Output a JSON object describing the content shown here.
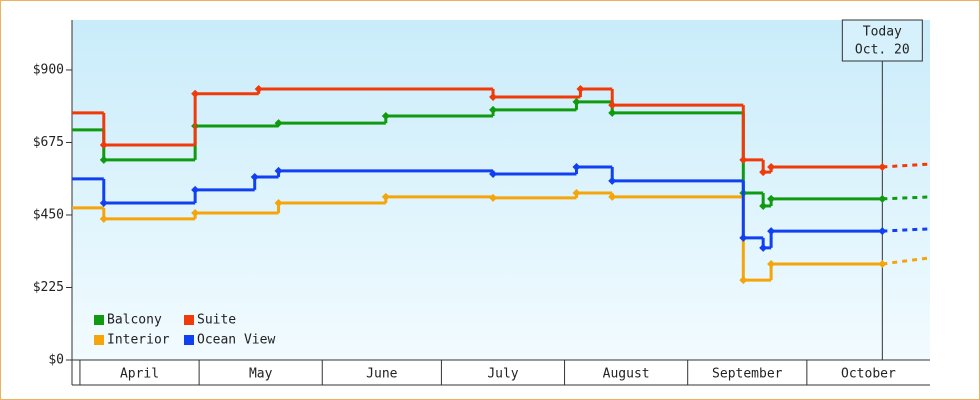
{
  "chart_data": {
    "type": "step",
    "xlim": [
      -2,
      214
    ],
    "ylim": [
      0,
      1055
    ],
    "yticks": [
      {
        "value": 0,
        "label": "$0"
      },
      {
        "value": 225,
        "label": "$225"
      },
      {
        "value": 450,
        "label": "$450"
      },
      {
        "value": 675,
        "label": "$675"
      },
      {
        "value": 900,
        "label": "$900"
      }
    ],
    "xticks": [
      {
        "value": 0,
        "label": "April"
      },
      {
        "value": 30,
        "label": "May"
      },
      {
        "value": 61,
        "label": "June"
      },
      {
        "value": 91,
        "label": "July"
      },
      {
        "value": 122,
        "label": "August"
      },
      {
        "value": 153,
        "label": "September"
      },
      {
        "value": 183,
        "label": "October"
      }
    ],
    "today": {
      "x": 202,
      "label": "Today",
      "date": "Oct. 20"
    },
    "legend": "bottom-left",
    "series": [
      {
        "name": "Balcony",
        "color": "#109a10",
        "x": [
          -2,
          6,
          29,
          50,
          77,
          104,
          125,
          134,
          167,
          172,
          174,
          202
        ],
        "values": [
          714,
          621,
          726,
          735,
          757,
          776,
          801,
          767,
          518,
          478,
          500,
          500
        ],
        "forecast": 506
      },
      {
        "name": "Suite",
        "color": "#f03a0a",
        "x": [
          -2,
          6,
          29,
          45,
          104,
          126,
          134,
          167,
          172,
          174,
          202
        ],
        "values": [
          767,
          667,
          826,
          841,
          816,
          841,
          791,
          621,
          583,
          599,
          599
        ],
        "forecast": 608
      },
      {
        "name": "Interior",
        "color": "#f5a50a",
        "x": [
          -2,
          6,
          29,
          50,
          77,
          104,
          125,
          134,
          167,
          174,
          202
        ],
        "values": [
          472,
          438,
          456,
          487,
          506,
          503,
          518,
          506,
          248,
          298,
          298
        ],
        "forecast": 317
      },
      {
        "name": "Ocean View",
        "color": "#1040f0",
        "x": [
          -2,
          6,
          29,
          44,
          50,
          104,
          125,
          134,
          167,
          172,
          174,
          202
        ],
        "values": [
          562,
          487,
          528,
          568,
          587,
          577,
          599,
          556,
          379,
          348,
          400,
          400
        ],
        "forecast": 407
      }
    ]
  }
}
